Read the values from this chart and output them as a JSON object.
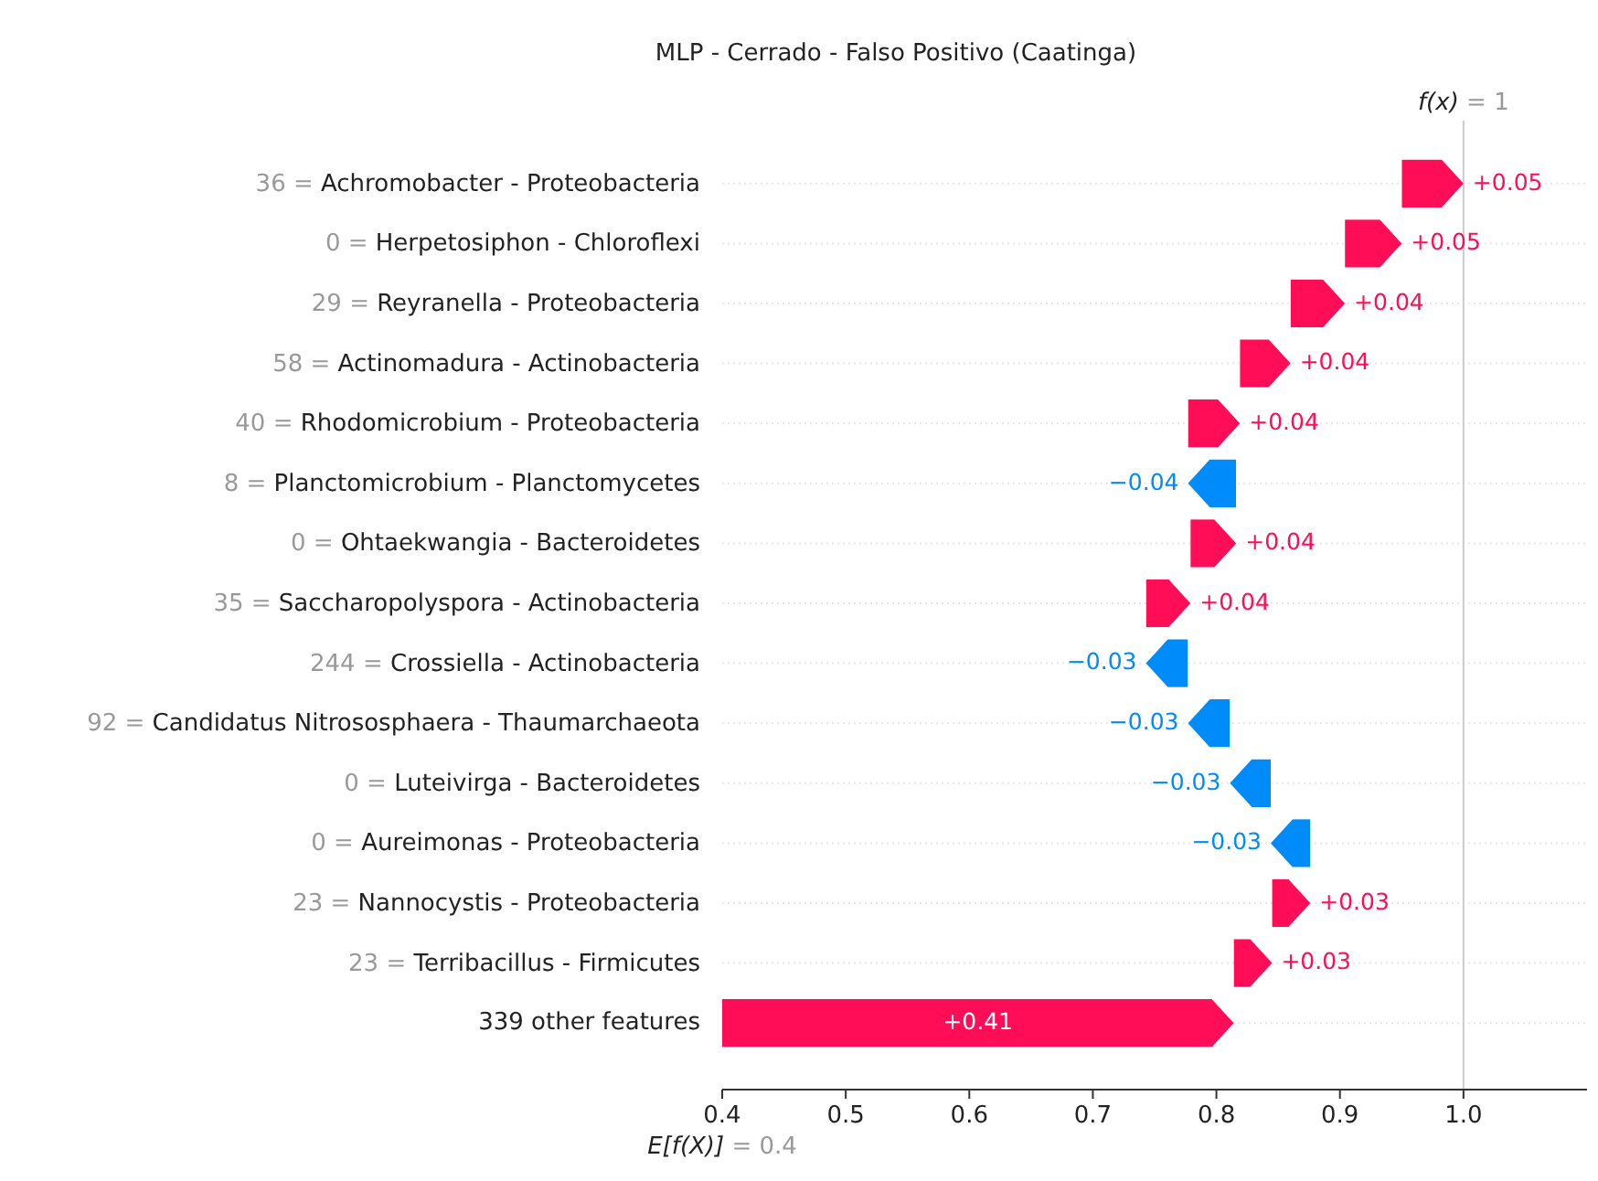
{
  "chart_data": {
    "type": "bar",
    "orientation": "horizontal",
    "title": "MLP - Cerrado - Falso Positivo (Caatinga)",
    "categories": [
      "36 = Achromobacter - Proteobacteria",
      "0 = Herpetosiphon - Chloroflexi",
      "29 = Reyranella - Proteobacteria",
      "58 = Actinomadura - Actinobacteria",
      "40 = Rhodomicrobium - Proteobacteria",
      "8 = Planctomicrobium - Planctomycetes",
      "0 = Ohtaekwangia - Bacteroidetes",
      "35 = Saccharopolyspora - Actinobacteria",
      "244 = Crossiella - Actinobacteria",
      "92 = Candidatus Nitrososphaera - Thaumarchaeota",
      "0 = Luteivirga - Bacteroidetes",
      "0 = Aureimonas - Proteobacteria",
      "23 = Nannocystis - Proteobacteria",
      "23 = Terribacillus - Firmicutes",
      "339 other features"
    ],
    "values": [
      0.05,
      0.046,
      0.044,
      0.041,
      0.042,
      -0.039,
      0.037,
      0.036,
      -0.034,
      -0.034,
      -0.033,
      -0.032,
      0.031,
      0.031,
      0.414
    ],
    "base": [
      0.95,
      0.904,
      0.86,
      0.819,
      0.777,
      0.816,
      0.779,
      0.743,
      0.777,
      0.811,
      0.844,
      0.876,
      0.845,
      0.814,
      0.4
    ],
    "value_labels": [
      "+0.05",
      "+0.05",
      "+0.04",
      "+0.04",
      "+0.04",
      "−0.04",
      "+0.04",
      "+0.04",
      "−0.03",
      "−0.03",
      "−0.03",
      "−0.03",
      "+0.03",
      "+0.03",
      "+0.41"
    ],
    "colors": [
      "#ff0d57",
      "#ff0d57",
      "#ff0d57",
      "#ff0d57",
      "#ff0d57",
      "#008bfb",
      "#ff0d57",
      "#ff0d57",
      "#008bfb",
      "#008bfb",
      "#008bfb",
      "#008bfb",
      "#ff0d57",
      "#ff0d57",
      "#ff0d57"
    ],
    "xlim": [
      0.4,
      1.1
    ],
    "xticks": [
      0.4,
      0.5,
      0.6,
      0.7,
      0.8,
      0.9,
      {
        "value": 1,
        "label": "1.0"
      }
    ],
    "ref_lines": [
      {
        "axis": "x",
        "value": 1.0,
        "label": "f(x) = 1",
        "color": "#cccccc"
      }
    ],
    "annotations": [
      "E[f(X)] = 0.4"
    ],
    "grid": "y"
  }
}
